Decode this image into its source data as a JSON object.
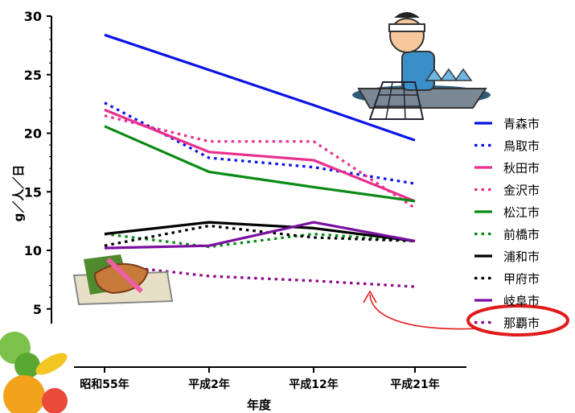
{
  "chart_data": {
    "type": "line",
    "xlabel": "年度",
    "ylabel": "g／人／日",
    "categories": [
      "昭和55年",
      "平成2年",
      "平成12年",
      "平成21年"
    ],
    "ylim": [
      0,
      30
    ],
    "yticks": [
      5,
      10,
      15,
      20,
      25,
      30
    ],
    "grid": false,
    "legend_position": "right",
    "highlighted_series": "那覇市",
    "series": [
      {
        "name": "青森市",
        "color": "#0a14e6",
        "style": "solid",
        "values": [
          28.4,
          25.4,
          22.4,
          19.4
        ]
      },
      {
        "name": "鳥取市",
        "color": "#0a14e6",
        "style": "dotted",
        "values": [
          22.6,
          17.9,
          17.1,
          15.7
        ]
      },
      {
        "name": "秋田市",
        "color": "#e8308c",
        "style": "solid",
        "values": [
          22.0,
          18.4,
          17.7,
          14.2
        ]
      },
      {
        "name": "金沢市",
        "color": "#e8308c",
        "style": "dotted",
        "values": [
          21.5,
          19.3,
          19.3,
          13.6
        ]
      },
      {
        "name": "松江市",
        "color": "#0c8a16",
        "style": "solid",
        "values": [
          20.6,
          16.7,
          15.4,
          14.2
        ]
      },
      {
        "name": "前橋市",
        "color": "#0c8a16",
        "style": "dotted",
        "values": [
          11.4,
          10.3,
          11.4,
          10.8
        ]
      },
      {
        "name": "浦和市",
        "color": "#000000",
        "style": "solid",
        "values": [
          11.4,
          12.4,
          11.9,
          10.8
        ]
      },
      {
        "name": "甲府市",
        "color": "#000000",
        "style": "dotted",
        "values": [
          10.4,
          12.1,
          11.1,
          10.8
        ]
      },
      {
        "name": "岐阜市",
        "color": "#7a0fa0",
        "style": "solid",
        "values": [
          10.2,
          10.4,
          12.4,
          10.8
        ]
      },
      {
        "name": "那覇市",
        "color": "#8b0a8b",
        "style": "dotted",
        "values": [
          8.8,
          7.8,
          7.4,
          6.9
        ]
      }
    ]
  }
}
